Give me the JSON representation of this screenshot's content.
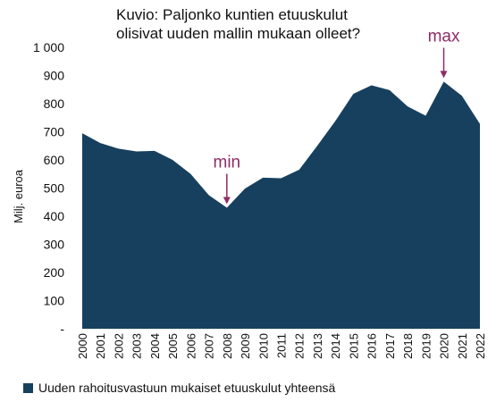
{
  "chart_data": {
    "type": "area",
    "title": "Kuvio: Paljonko kuntien etuuskulut\nolisivat uuden mallin mukaan olleet?",
    "ylabel": "Milj. euroa",
    "xlabel": "",
    "ylim": [
      0,
      1000
    ],
    "yticks": [
      0,
      100,
      200,
      300,
      400,
      500,
      600,
      700,
      800,
      900,
      1000
    ],
    "ytick_labels": [
      "-",
      "100",
      "200",
      "300",
      "400",
      "500",
      "600",
      "700",
      "800",
      "900",
      "1 000"
    ],
    "grid": false,
    "legend_position": "bottom",
    "x": [
      "2000",
      "2001",
      "2002",
      "2003",
      "2004",
      "2005",
      "2006",
      "2007",
      "2008",
      "2009",
      "2010",
      "2011",
      "2012",
      "2013",
      "2014",
      "2015",
      "2016",
      "2017",
      "2018",
      "2019",
      "2020",
      "2021",
      "2022"
    ],
    "series": [
      {
        "name": "Uuden rahoitusvastuun mukaiset etuuskulut yhteensä",
        "color": "#17405e",
        "values": [
          695,
          660,
          640,
          630,
          632,
          600,
          550,
          475,
          430,
          498,
          537,
          535,
          565,
          650,
          738,
          835,
          865,
          848,
          790,
          757,
          878,
          828,
          728
        ]
      }
    ],
    "annotations": [
      {
        "text": "min",
        "x": "2008",
        "color": "#8c2d67"
      },
      {
        "text": "max",
        "x": "2020",
        "color": "#8c2d67"
      }
    ]
  }
}
